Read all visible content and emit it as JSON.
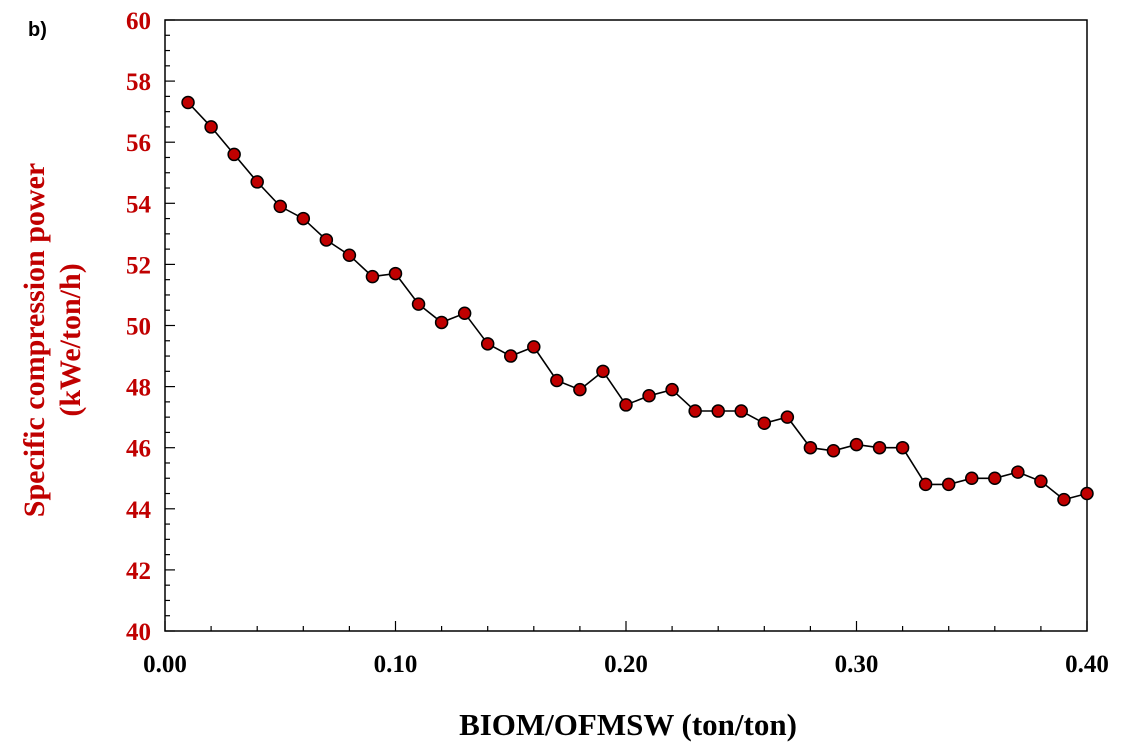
{
  "panel_label": "b)",
  "colors": {
    "marker_fill": "#c00000",
    "marker_stroke": "#000000",
    "line": "#000000",
    "y_axis_text": "#c00000",
    "x_axis_text": "#000000"
  },
  "chart_data": {
    "type": "line",
    "title": "",
    "xlabel": "BIOM/OFMSW (ton/ton)",
    "ylabel_line1": "Specific compression power",
    "ylabel_line2": "(kWe/ton/h)",
    "xlim": [
      0.0,
      0.4
    ],
    "ylim": [
      40,
      60
    ],
    "x_tick_labels": [
      "0.00",
      "0.10",
      "0.20",
      "0.30",
      "0.40"
    ],
    "y_tick_labels": [
      "40",
      "42",
      "44",
      "46",
      "48",
      "50",
      "52",
      "54",
      "56",
      "58",
      "60"
    ],
    "grid": false,
    "legend": "none",
    "marker": "circle",
    "x": [
      0.01,
      0.02,
      0.03,
      0.04,
      0.05,
      0.06,
      0.07,
      0.08,
      0.09,
      0.1,
      0.11,
      0.12,
      0.13,
      0.14,
      0.15,
      0.16,
      0.17,
      0.18,
      0.19,
      0.2,
      0.21,
      0.22,
      0.23,
      0.24,
      0.25,
      0.26,
      0.27,
      0.28,
      0.29,
      0.3,
      0.31,
      0.32,
      0.33,
      0.34,
      0.35,
      0.36,
      0.37,
      0.38,
      0.39,
      0.4
    ],
    "y": [
      57.3,
      56.5,
      55.6,
      54.7,
      53.9,
      53.5,
      52.8,
      52.3,
      51.6,
      51.7,
      50.7,
      50.1,
      50.4,
      49.4,
      49.0,
      49.3,
      48.2,
      47.9,
      48.5,
      47.4,
      47.7,
      47.9,
      47.2,
      47.2,
      47.2,
      46.8,
      47.0,
      46.0,
      45.9,
      46.1,
      46.0,
      46.0,
      44.8,
      44.8,
      45.0,
      45.0,
      45.2,
      44.9,
      44.3,
      44.5
    ]
  }
}
